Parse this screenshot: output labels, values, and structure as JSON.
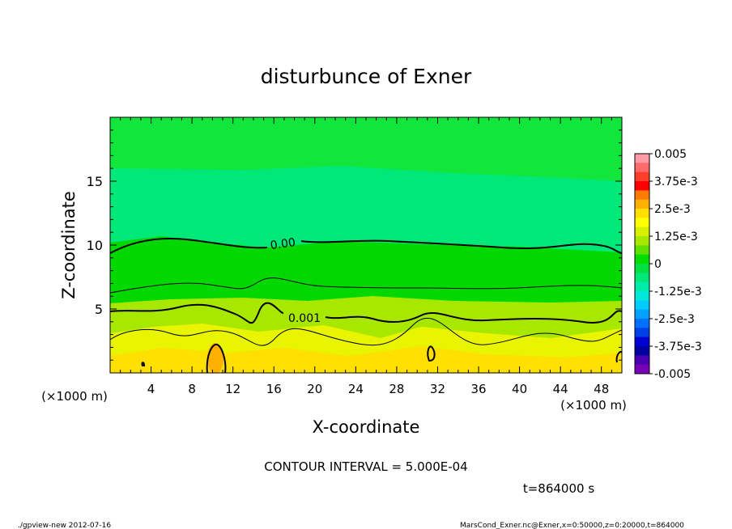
{
  "chart_data": {
    "type": "heatmap",
    "title": "disturbunce of Exner",
    "xlabel": "X-coordinate",
    "ylabel": "Z-coordinate",
    "x_units": "(×1000 m)",
    "x_units_right": "(×1000 m)",
    "xlim": [
      0,
      50
    ],
    "ylim": [
      0,
      20
    ],
    "x_ticks": [
      4,
      8,
      12,
      16,
      20,
      24,
      28,
      32,
      36,
      40,
      44,
      48
    ],
    "y_ticks": [
      5,
      10,
      15
    ],
    "colorbar": {
      "labels": [
        "0.005",
        "3.75e-3",
        "2.5e-3",
        "1.25e-3",
        "0",
        "-1.25e-3",
        "-2.5e-3",
        "-3.75e-3",
        "-0.005"
      ],
      "colors_top_to_bottom": [
        "#ff9aa6",
        "#ff6a6a",
        "#ff3d2a",
        "#ff0000",
        "#ff7a00",
        "#ffb000",
        "#ffe000",
        "#ffff00",
        "#d8f000",
        "#a8e800",
        "#60e000",
        "#00dd00",
        "#00e040",
        "#00e878",
        "#00ecaa",
        "#00e8d8",
        "#00ccff",
        "#00a0ff",
        "#0070ff",
        "#0040e8",
        "#0000d0",
        "#0000a0",
        "#4800b0",
        "#7800b8"
      ]
    },
    "field_colors": {
      "top": "#12e63c",
      "upper_band": "#00e878",
      "mid": "#00d800",
      "lower_mid": "#a8e800",
      "bottom": "#e8f400",
      "peak": "#ffe000",
      "cell": "#ffb000"
    },
    "contour_labels": [
      "0.00",
      "0.001"
    ],
    "contour_interval_text": "CONTOUR INTERVAL = 5.000E-04",
    "time_text": "t=864000 s",
    "footer_left": "./gpview-new   2012-07-16",
    "footer_right": "MarsCond_Exner.nc@Exner,x=0:50000,z=0:20000,t=864000"
  }
}
